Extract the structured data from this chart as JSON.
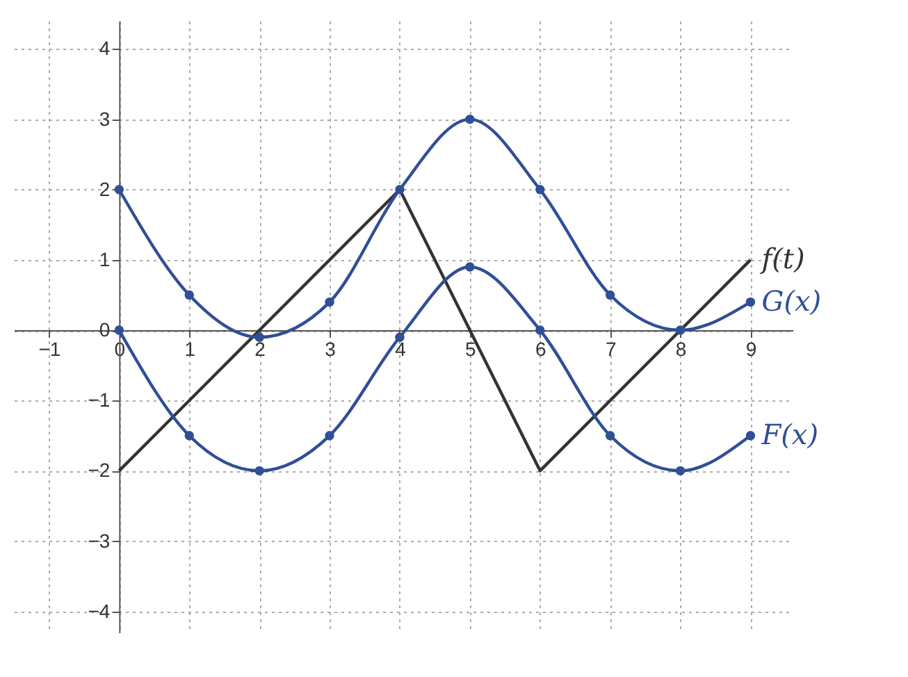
{
  "chart_data": {
    "type": "line",
    "xlim": [
      -1.5,
      9.6
    ],
    "ylim": [
      -4.3,
      4.4
    ],
    "xticks": [
      -1,
      0,
      1,
      2,
      3,
      4,
      5,
      6,
      7,
      8,
      9
    ],
    "yticks": [
      -4,
      -3,
      -2,
      -1,
      0,
      1,
      2,
      3,
      4
    ],
    "grid": true,
    "line_style": "solid",
    "series": [
      {
        "name": "f(t)",
        "color": "#333333",
        "marker": "none",
        "x": [
          0,
          4,
          6,
          9
        ],
        "values": [
          -2,
          2,
          -2,
          1
        ]
      },
      {
        "name": "G(x)",
        "color": "#2f4f96",
        "marker": "circle",
        "x": [
          0,
          1,
          2,
          3,
          4,
          5,
          6,
          7,
          8,
          9
        ],
        "values": [
          2,
          0.5,
          -0.1,
          0.4,
          2,
          3,
          2,
          0.5,
          0,
          0.4
        ]
      },
      {
        "name": "F(x)",
        "color": "#2f4f96",
        "marker": "circle",
        "x": [
          0,
          1,
          2,
          3,
          4,
          5,
          6,
          7,
          8,
          9
        ],
        "values": [
          0,
          -1.5,
          -2,
          -1.5,
          -0.1,
          0.9,
          0,
          -1.5,
          -2,
          -1.5
        ]
      }
    ]
  }
}
